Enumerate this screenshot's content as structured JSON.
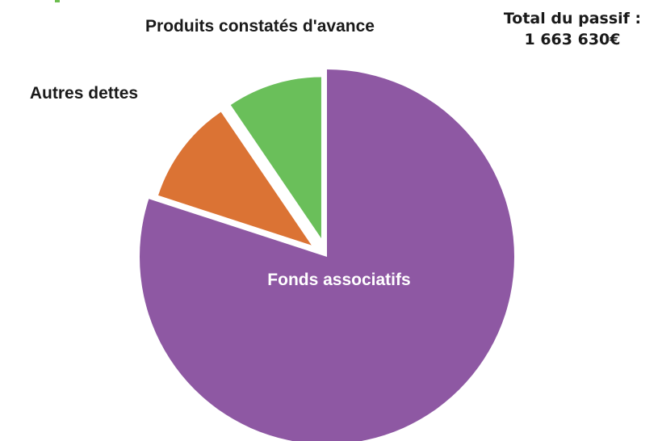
{
  "total": {
    "label": "Total du passif :",
    "value": "1 663 630€"
  },
  "chart_data": {
    "type": "pie",
    "title": "",
    "categories": [
      "Produits constatés d'avance",
      "Autres dettes",
      "Fonds associatifs"
    ],
    "values": [
      9.5,
      10.5,
      80.0
    ],
    "unit": "%",
    "colors": [
      "#6abf5a",
      "#db7334",
      "#8e58a3"
    ],
    "start_angle": "12 o'clock, counterclockwise",
    "exploded": [
      true,
      true,
      false
    ],
    "legend": "none",
    "label_colors": [
      "#1a1a1a",
      "#1a1a1a",
      "#ffffff"
    ]
  }
}
